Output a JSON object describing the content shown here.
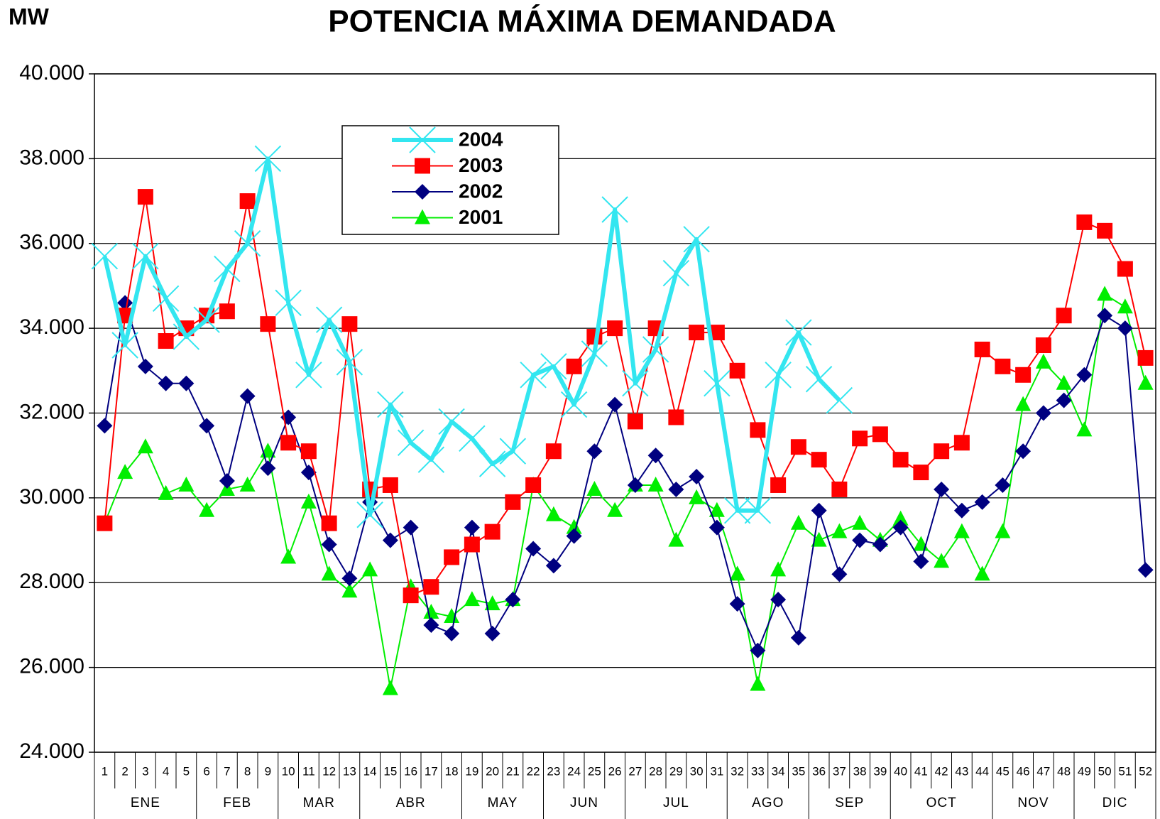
{
  "chart_data": {
    "type": "line",
    "title": "POTENCIA MÁXIMA DEMANDADA",
    "y_axis_label": "MW",
    "categories": [
      "1",
      "2",
      "3",
      "4",
      "5",
      "6",
      "7",
      "8",
      "9",
      "10",
      "11",
      "12",
      "13",
      "14",
      "15",
      "16",
      "17",
      "18",
      "19",
      "20",
      "21",
      "22",
      "23",
      "24",
      "25",
      "26",
      "27",
      "28",
      "29",
      "30",
      "31",
      "32",
      "33",
      "34",
      "35",
      "36",
      "37",
      "38",
      "39",
      "40",
      "41",
      "42",
      "43",
      "44",
      "45",
      "46",
      "47",
      "48",
      "49",
      "50",
      "51",
      "52"
    ],
    "month_groups": [
      {
        "name": "ENE",
        "weeks": 5
      },
      {
        "name": "FEB",
        "weeks": 4
      },
      {
        "name": "MAR",
        "weeks": 4
      },
      {
        "name": "ABR",
        "weeks": 5
      },
      {
        "name": "MAY",
        "weeks": 4
      },
      {
        "name": "JUN",
        "weeks": 4
      },
      {
        "name": "JUL",
        "weeks": 5
      },
      {
        "name": "AGO",
        "weeks": 4
      },
      {
        "name": "SEP",
        "weeks": 4
      },
      {
        "name": "OCT",
        "weeks": 5
      },
      {
        "name": "NOV",
        "weeks": 4
      },
      {
        "name": "DIC",
        "weeks": 4
      }
    ],
    "ylim": [
      24000,
      40000
    ],
    "yticks": [
      {
        "value": 24000,
        "label": "24.000"
      },
      {
        "value": 26000,
        "label": "26.000"
      },
      {
        "value": 28000,
        "label": "28.000"
      },
      {
        "value": 30000,
        "label": "30.000"
      },
      {
        "value": 32000,
        "label": "32.000"
      },
      {
        "value": 34000,
        "label": "34.000"
      },
      {
        "value": 36000,
        "label": "36.000"
      },
      {
        "value": 38000,
        "label": "38.000"
      },
      {
        "value": 40000,
        "label": "40.000"
      }
    ],
    "grid": true,
    "legend": "top-left",
    "series": [
      {
        "name": "2004",
        "color": "#33e6f0",
        "marker": "x",
        "width": 6,
        "values": [
          35700,
          33600,
          35700,
          34700,
          33800,
          34200,
          35400,
          36000,
          38000,
          34600,
          32900,
          34200,
          33200,
          29600,
          32200,
          31300,
          30900,
          31800,
          31400,
          30800,
          31100,
          32900,
          33100,
          32200,
          33400,
          36800,
          32700,
          33500,
          35300,
          36100,
          32700,
          29700,
          29700,
          32900,
          33900,
          32800,
          32300,
          null,
          null,
          null,
          null,
          null,
          null,
          null,
          null,
          null,
          null,
          null,
          null,
          null,
          null,
          null
        ]
      },
      {
        "name": "2003",
        "color": "#ff0000",
        "marker": "square",
        "width": 2,
        "values": [
          29400,
          34300,
          37100,
          33700,
          34000,
          34300,
          34400,
          37000,
          34100,
          31300,
          31100,
          29400,
          34100,
          30200,
          30300,
          27700,
          27900,
          28600,
          28900,
          29200,
          29900,
          30300,
          31100,
          33100,
          33800,
          34000,
          31800,
          34000,
          31900,
          33900,
          33900,
          33000,
          31600,
          30300,
          31200,
          30900,
          30200,
          31400,
          31500,
          30900,
          30600,
          31100,
          31300,
          33500,
          33100,
          32900,
          33600,
          34300,
          36500,
          36300,
          35400,
          33300
        ]
      },
      {
        "name": "2002",
        "color": "#000080",
        "marker": "diamond",
        "width": 2,
        "values": [
          31700,
          34600,
          33100,
          32700,
          32700,
          31700,
          30400,
          32400,
          30700,
          31900,
          30600,
          28900,
          28100,
          29900,
          29000,
          29300,
          27000,
          26800,
          29300,
          26800,
          27600,
          28800,
          28400,
          29100,
          31100,
          32200,
          30300,
          31000,
          30200,
          30500,
          29300,
          27500,
          26400,
          27600,
          26700,
          29700,
          28200,
          29000,
          28900,
          29300,
          28500,
          30200,
          29700,
          29900,
          30300,
          31100,
          32000,
          32300,
          32900,
          34300,
          34000,
          28300
        ]
      },
      {
        "name": "2001",
        "color": "#00ee00",
        "marker": "triangle",
        "width": 2,
        "values": [
          29400,
          30600,
          31200,
          30100,
          30300,
          29700,
          30200,
          30300,
          31100,
          28600,
          29900,
          28200,
          27800,
          28300,
          25500,
          27900,
          27300,
          27200,
          27600,
          27500,
          27600,
          30300,
          29600,
          29300,
          30200,
          29700,
          30300,
          30300,
          29000,
          30000,
          29700,
          28200,
          25600,
          28300,
          29400,
          29000,
          29200,
          29400,
          29000,
          29500,
          28900,
          28500,
          29200,
          28200,
          29200,
          32200,
          33200,
          32700,
          31600,
          34800,
          34500,
          32700
        ]
      }
    ]
  }
}
